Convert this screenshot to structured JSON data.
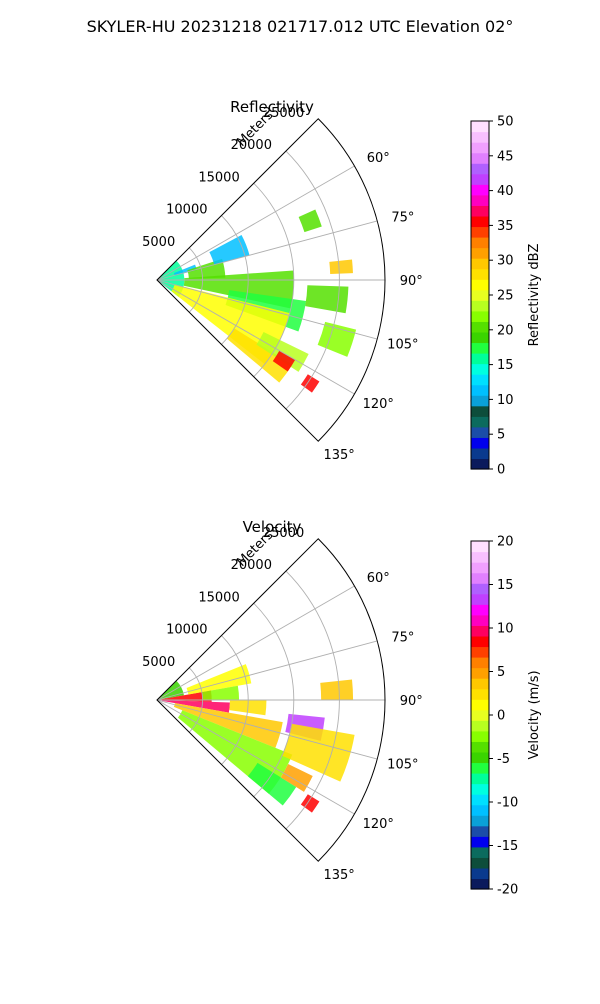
{
  "figure": {
    "suptitle": "SKYLER-HU  20231218  021717.012 UTC Elevation 02°"
  },
  "chart_data": [
    {
      "type": "heatmap",
      "projection": "polar-sector",
      "title": "Reflectivity",
      "radial_axis_label": "Meters",
      "radial_ticks": [
        5000,
        10000,
        15000,
        20000,
        25000
      ],
      "radial_tick_labels": [
        "5000",
        "10000",
        "15000",
        "20000",
        "25000"
      ],
      "radial_max": 25000,
      "azimuth_range_deg": [
        45,
        135
      ],
      "azimuth_ticks_deg": [
        60,
        75,
        90,
        105,
        120,
        135
      ],
      "azimuth_tick_labels": [
        "60°",
        "75°",
        "90°",
        "105°",
        "120°",
        "135°"
      ],
      "grid": true,
      "colorbar": {
        "label": "Reflectivity dBZ",
        "vmin": 0,
        "vmax": 50,
        "ticks": [
          0,
          5,
          10,
          15,
          20,
          25,
          30,
          35,
          40,
          45,
          50
        ],
        "tick_labels": [
          "0",
          "5",
          "10",
          "15",
          "20",
          "25",
          "30",
          "35",
          "40",
          "45",
          "50"
        ],
        "colors": [
          "#0b1a5c",
          "#0a3a8e",
          "#0000ee",
          "#1b4da8",
          "#0b6b5e",
          "#0d4d3b",
          "#0aa0d8",
          "#00c0ff",
          "#00e0ff",
          "#00ffe0",
          "#00ff9a",
          "#20ff40",
          "#3ad400",
          "#55e000",
          "#88ff00",
          "#b8ff20",
          "#e8ff20",
          "#ffff00",
          "#ffe000",
          "#ffc800",
          "#ffa000",
          "#ff8000",
          "#ff4000",
          "#ff0000",
          "#ff0060",
          "#ff00c0",
          "#ff00ff",
          "#c040ff",
          "#b060ff",
          "#e080ff",
          "#f0a0ff",
          "#f8c0ff",
          "#ffe0ff"
        ]
      },
      "echo_regions": [
        {
          "az": [
            46,
            128
          ],
          "r": [
            0,
            3000
          ],
          "value": 16
        },
        {
          "az": [
            68,
            76
          ],
          "r": [
            2000,
            4500
          ],
          "value": 12
        },
        {
          "az": [
            72,
            88
          ],
          "r": [
            3500,
            7500
          ],
          "value": 20
        },
        {
          "az": [
            62,
            75
          ],
          "r": [
            6500,
            10500
          ],
          "value": 12
        },
        {
          "az": [
            86,
            102
          ],
          "r": [
            3000,
            15000
          ],
          "value": 20
        },
        {
          "az": [
            98,
            110
          ],
          "r": [
            8000,
            16500
          ],
          "value": 18
        },
        {
          "az": [
            104,
            128
          ],
          "r": [
            2000,
            15000
          ],
          "value": 26
        },
        {
          "az": [
            122,
            130
          ],
          "r": [
            10000,
            17500
          ],
          "value": 28
        },
        {
          "az": [
            116,
            123
          ],
          "r": [
            13000,
            18500
          ],
          "value": 24
        },
        {
          "az": [
            120,
            125
          ],
          "r": [
            15500,
            17500
          ],
          "value": 35
        },
        {
          "az": [
            92,
            100
          ],
          "r": [
            16500,
            21000
          ],
          "value": 20
        },
        {
          "az": [
            104,
            112
          ],
          "r": [
            19000,
            22500
          ],
          "value": 22
        },
        {
          "az": [
            84,
            88
          ],
          "r": [
            19000,
            21500
          ],
          "value": 30
        },
        {
          "az": [
            66,
            72
          ],
          "r": [
            17000,
            19000
          ],
          "value": 20
        },
        {
          "az": [
            122,
            126
          ],
          "r": [
            19500,
            21000
          ],
          "value": 35
        }
      ]
    },
    {
      "type": "heatmap",
      "projection": "polar-sector",
      "title": "Velocity",
      "radial_axis_label": "Meters",
      "radial_ticks": [
        5000,
        10000,
        15000,
        20000,
        25000
      ],
      "radial_tick_labels": [
        "5000",
        "10000",
        "15000",
        "20000",
        "25000"
      ],
      "radial_max": 25000,
      "azimuth_range_deg": [
        45,
        135
      ],
      "azimuth_ticks_deg": [
        60,
        75,
        90,
        105,
        120,
        135
      ],
      "azimuth_tick_labels": [
        "60°",
        "75°",
        "90°",
        "105°",
        "120°",
        "135°"
      ],
      "grid": true,
      "colorbar": {
        "label": "Velocity (m/s)",
        "vmin": -20,
        "vmax": 20,
        "ticks": [
          -20,
          -15,
          -10,
          -5,
          0,
          5,
          10,
          15,
          20
        ],
        "tick_labels": [
          "-20",
          "-15",
          "-10",
          "-5",
          "0",
          "5",
          "10",
          "15",
          "20"
        ],
        "colors": [
          "#0b1a5c",
          "#0a3a8e",
          "#0d4d3b",
          "#0b6b5e",
          "#0000ee",
          "#1b4da8",
          "#0aa0d8",
          "#00c0ff",
          "#00e0ff",
          "#00ffe0",
          "#00ff9a",
          "#20ff40",
          "#3ad400",
          "#55e000",
          "#88ff00",
          "#b8ff20",
          "#e8ff20",
          "#ffff00",
          "#ffe000",
          "#ffc800",
          "#ffa000",
          "#ff8000",
          "#ff4000",
          "#ff0000",
          "#ff0060",
          "#ff00c0",
          "#ff00ff",
          "#c040ff",
          "#b060ff",
          "#e080ff",
          "#f0a0ff",
          "#f8c0ff",
          "#ffe0ff"
        ]
      },
      "echo_regions": [
        {
          "az": [
            46,
            80
          ],
          "r": [
            0,
            3000
          ],
          "value": -5
        },
        {
          "az": [
            80,
            92
          ],
          "r": [
            0,
            6000
          ],
          "value": 9
        },
        {
          "az": [
            92,
            100
          ],
          "r": [
            500,
            8000
          ],
          "value": 10
        },
        {
          "az": [
            90,
            98
          ],
          "r": [
            8000,
            12000
          ],
          "value": 2
        },
        {
          "az": [
            68,
            80
          ],
          "r": [
            3500,
            10500
          ],
          "value": 1
        },
        {
          "az": [
            80,
            90
          ],
          "r": [
            5000,
            9000
          ],
          "value": -3
        },
        {
          "az": [
            100,
            112
          ],
          "r": [
            2000,
            14000
          ],
          "value": 4
        },
        {
          "az": [
            112,
            130
          ],
          "r": [
            3000,
            16000
          ],
          "value": -3
        },
        {
          "az": [
            122,
            130
          ],
          "r": [
            13000,
            18000
          ],
          "value": -6
        },
        {
          "az": [
            96,
            104
          ],
          "r": [
            14500,
            18500
          ],
          "value": 13
        },
        {
          "az": [
            100,
            114
          ],
          "r": [
            15000,
            22000
          ],
          "value": 2
        },
        {
          "az": [
            116,
            122
          ],
          "r": [
            16000,
            19000
          ],
          "value": 5
        },
        {
          "az": [
            84,
            90
          ],
          "r": [
            18000,
            21500
          ],
          "value": 4
        },
        {
          "az": [
            122,
            126
          ],
          "r": [
            19500,
            21000
          ],
          "value": 9
        }
      ]
    }
  ]
}
